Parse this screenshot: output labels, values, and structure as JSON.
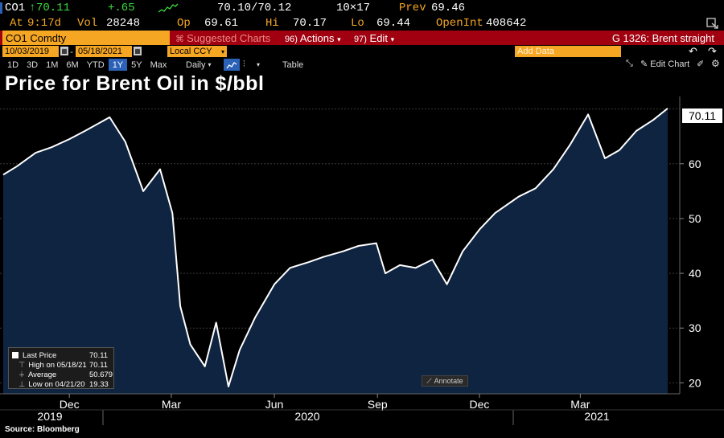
{
  "quote": {
    "ticker": "CO1",
    "arrow": "↑",
    "last": "70.11",
    "change": "+.65",
    "bid_ask": "70.10/70.12",
    "size": "10×17",
    "prev_label": "Prev",
    "prev": "69.46",
    "at_label": "At",
    "time": "9:17d",
    "vol_label": "Vol",
    "vol": "28248",
    "op_label": "Op",
    "op": "69.61",
    "hi_label": "Hi",
    "hi": "70.17",
    "lo_label": "Lo",
    "lo": "69.44",
    "oi_label": "OpenInt",
    "oi": "408642"
  },
  "command_bar": {
    "security": "CO1 Comdty",
    "suggested": "Suggested Charts",
    "actions_num": "96)",
    "actions": "Actions",
    "edit_num": "97)",
    "edit": "Edit",
    "chart_name": "G 1326: Brent straight"
  },
  "params": {
    "start_date": "10/03/2019",
    "end_date": "05/18/2021",
    "currency": "Local CCY",
    "add_data_placeholder": "Add Data"
  },
  "toolbar": {
    "ranges": [
      "1D",
      "3D",
      "1M",
      "6M",
      "YTD",
      "1Y",
      "5Y",
      "Max"
    ],
    "active_range": "1Y",
    "frequency": "Daily",
    "table": "Table",
    "edit_chart": "Edit Chart"
  },
  "title": "Price for Brent Oil in $/bbl",
  "legend": {
    "last_label": "Last Price",
    "last_value": "70.11",
    "high_label": "High on 05/18/21",
    "high_value": "70.11",
    "avg_label": "Average",
    "avg_value": "50.679",
    "low_label": "Low on 04/21/20",
    "low_value": "19.33"
  },
  "annotate": "Annotate",
  "last_badge": "70.11",
  "source": "Source: Bloomberg",
  "colors": {
    "line": "#ffffff",
    "fill": "#0f2440",
    "accent": "#f5a623",
    "active": "#2b62b8"
  },
  "chart_data": {
    "type": "area",
    "ylim": [
      18,
      72
    ],
    "yticks": [
      20,
      30,
      40,
      50,
      60
    ],
    "month_labels": [
      "Dec",
      "Mar",
      "Jun",
      "Sep",
      "Dec",
      "Mar"
    ],
    "month_ticks": [
      "2019-12-01",
      "2020-03-01",
      "2020-06-01",
      "2020-09-01",
      "2020-12-01",
      "2021-03-01"
    ],
    "year_labels": [
      "2019",
      "2020",
      "2021"
    ],
    "x": [
      "2019-10-03",
      "2019-10-15",
      "2019-11-01",
      "2019-11-15",
      "2019-12-01",
      "2019-12-15",
      "2020-01-06",
      "2020-01-20",
      "2020-02-05",
      "2020-02-20",
      "2020-03-02",
      "2020-03-09",
      "2020-03-18",
      "2020-03-31",
      "2020-04-10",
      "2020-04-21",
      "2020-05-01",
      "2020-05-15",
      "2020-06-01",
      "2020-06-15",
      "2020-07-01",
      "2020-07-15",
      "2020-08-01",
      "2020-08-15",
      "2020-08-31",
      "2020-09-08",
      "2020-09-21",
      "2020-10-05",
      "2020-10-20",
      "2020-11-02",
      "2020-11-16",
      "2020-12-01",
      "2020-12-15",
      "2021-01-05",
      "2021-01-20",
      "2021-02-05",
      "2021-02-20",
      "2021-03-08",
      "2021-03-23",
      "2021-04-05",
      "2021-04-20",
      "2021-05-05",
      "2021-05-18"
    ],
    "y": [
      58.0,
      59.5,
      62.0,
      63.0,
      64.5,
      66.0,
      68.5,
      64.0,
      55.0,
      59.0,
      51.0,
      34.0,
      27.0,
      23.0,
      31.0,
      19.33,
      26.0,
      32.0,
      38.0,
      41.0,
      42.0,
      43.0,
      44.0,
      45.0,
      45.5,
      40.0,
      41.5,
      41.0,
      42.5,
      38.0,
      44.0,
      48.0,
      51.0,
      54.0,
      55.5,
      59.0,
      63.5,
      69.0,
      61.0,
      62.5,
      66.0,
      68.0,
      70.11
    ],
    "series": [
      {
        "name": "Last Price"
      }
    ]
  }
}
